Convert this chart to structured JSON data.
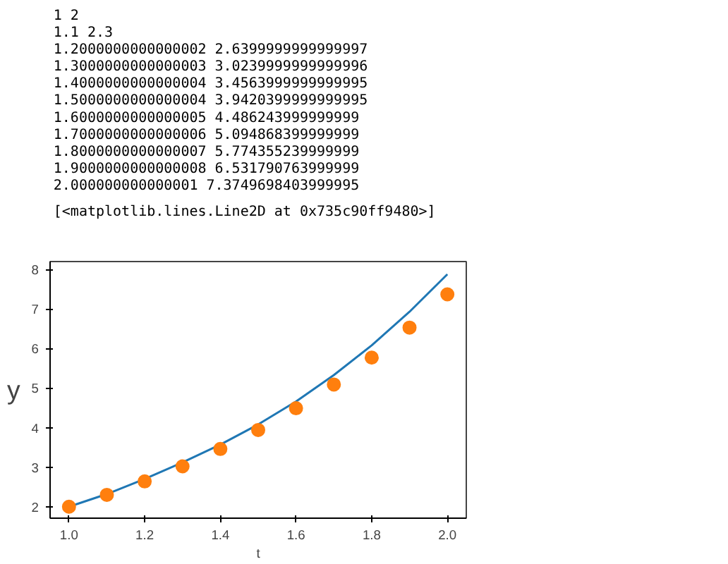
{
  "chart_data": {
    "type": "scatter",
    "xlabel": "t",
    "ylabel": "y",
    "annotations": [
      "1 2",
      "1.1 2.3",
      "1.2000000000000002 2.6399999999999997",
      "1.3000000000000003 3.0239999999999996",
      "1.4000000000000004 3.4563999999999995",
      "1.5000000000000004 3.9420399999999995",
      "1.6000000000000005 4.486243999999999",
      "1.7000000000000006 5.094868399999999",
      "1.8000000000000007 5.774355239999999",
      "1.9000000000000008 6.531790763999999",
      "2.000000000000001 7.3749698403999995",
      "[<matplotlib.lines.Line2D at 0x735c90ff9480>]"
    ],
    "series": [
      {
        "type": "line",
        "color": "#1f77b4",
        "x": [
          1.0,
          1.1,
          1.2,
          1.3,
          1.4,
          1.5,
          1.6,
          1.7,
          1.8,
          1.9,
          2.0
        ],
        "values": [
          2.0,
          2.32,
          2.7,
          3.12,
          3.57,
          4.08,
          4.66,
          5.33,
          6.08,
          6.93,
          7.88
        ]
      },
      {
        "color": "#ff7f0e",
        "marker": "circle",
        "x": [
          1.0,
          1.1,
          1.2,
          1.3,
          1.4,
          1.5,
          1.6,
          1.7,
          1.8,
          1.9,
          2.0
        ],
        "values": [
          2,
          2.3,
          2.64,
          3.02,
          3.46,
          3.94,
          4.49,
          5.09,
          5.77,
          6.53,
          7.37
        ]
      }
    ],
    "xlim": [
      0.95,
      2.05
    ],
    "ylim": [
      1.71,
      8.2
    ],
    "xticks": [
      {
        "value": 1.0,
        "label": "1.0"
      },
      1.2,
      1.4,
      1.6,
      1.8,
      {
        "value": 2.0,
        "label": "2.0"
      }
    ],
    "yticks": [
      2,
      3,
      4,
      5,
      6,
      7,
      8
    ],
    "grid": false
  }
}
